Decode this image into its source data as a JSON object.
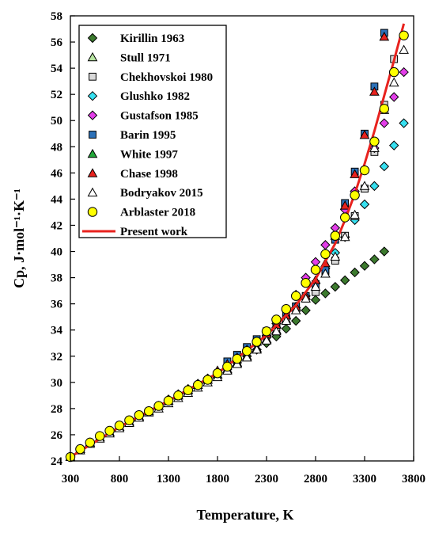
{
  "chart_data": {
    "type": "scatter",
    "title": "",
    "xlabel": "Temperature, K",
    "ylabel": "Cp, J·mol⁻¹·K⁻¹",
    "xlim": [
      300,
      3800
    ],
    "ylim": [
      24,
      58
    ],
    "xticks": [
      300,
      800,
      1300,
      1800,
      2300,
      2800,
      3300,
      3800
    ],
    "yticks": [
      24,
      26,
      28,
      30,
      32,
      34,
      36,
      38,
      40,
      42,
      44,
      46,
      48,
      50,
      52,
      54,
      56,
      58
    ],
    "legend_position": "upper-left",
    "grid": false,
    "series": [
      {
        "name": "Kirillin 1963",
        "marker": "diamond",
        "color": "#3c7a2e",
        "x": [
          300,
          400,
          500,
          600,
          700,
          800,
          900,
          1000,
          1100,
          1200,
          1300,
          1400,
          1500,
          1600,
          1700,
          1800,
          1900,
          2000,
          2100,
          2200,
          2300,
          2400,
          2500,
          2600,
          2700,
          2800,
          2900,
          3000,
          3100,
          3200,
          3300,
          3400,
          3500
        ],
        "y": [
          24.3,
          24.9,
          25.4,
          25.8,
          26.2,
          26.6,
          27.0,
          27.4,
          27.8,
          28.2,
          28.6,
          29.0,
          29.4,
          29.8,
          30.2,
          30.6,
          31.0,
          31.5,
          32.0,
          32.5,
          33.0,
          33.5,
          34.1,
          34.7,
          35.5,
          36.3,
          36.8,
          37.3,
          37.8,
          38.4,
          38.9,
          39.4,
          40.0
        ]
      },
      {
        "name": "Stull 1971",
        "marker": "triangle",
        "color": "#b6e4a0",
        "x": [
          300,
          400,
          500,
          600,
          700,
          800,
          900,
          1000,
          1100,
          1200,
          1300,
          1400,
          1500,
          1600,
          1700,
          1800,
          1900,
          2000,
          2100,
          2200,
          2300,
          2400,
          2500,
          2600
        ],
        "y": [
          24.3,
          24.9,
          25.4,
          25.8,
          26.2,
          26.6,
          27.0,
          27.4,
          27.8,
          28.2,
          28.6,
          29.0,
          29.4,
          29.8,
          30.2,
          30.6,
          31.0,
          31.5,
          32.0,
          32.6,
          33.3,
          34.0,
          34.8,
          35.7
        ]
      },
      {
        "name": "Chekhovskoi 1980",
        "marker": "square",
        "color": "#d9d9d9",
        "x": [
          2000,
          2100,
          2200,
          2300,
          2400,
          2500,
          2600,
          2700,
          2800,
          2900,
          3000,
          3100,
          3200,
          3300,
          3400,
          3500,
          3600
        ],
        "y": [
          32.1,
          32.6,
          33.1,
          33.6,
          34.2,
          34.9,
          35.8,
          36.4,
          36.9,
          38.5,
          39.3,
          41.2,
          42.7,
          44.8,
          47.6,
          51.2,
          54.7
        ]
      },
      {
        "name": "Glushko 1982",
        "marker": "diamond",
        "color": "#37e0f0",
        "x": [
          1300,
          1400,
          1500,
          1600,
          1700,
          1800,
          1900,
          2000,
          2100,
          2200,
          2300,
          2400,
          2500,
          2600,
          2700,
          2800,
          2900,
          3000,
          3100,
          3200,
          3300,
          3400,
          3500,
          3600,
          3700
        ],
        "y": [
          28.7,
          29.1,
          29.5,
          29.9,
          30.3,
          30.8,
          31.3,
          31.8,
          32.3,
          32.9,
          33.5,
          34.2,
          34.9,
          35.7,
          36.6,
          37.6,
          38.7,
          39.9,
          41.1,
          42.4,
          43.6,
          45.0,
          46.5,
          48.1,
          49.8
        ]
      },
      {
        "name": "Gustafson 1985",
        "marker": "diamond",
        "color": "#e23ee8",
        "x": [
          2300,
          2400,
          2500,
          2600,
          2700,
          2800,
          2900,
          3000,
          3100,
          3200,
          3300,
          3400,
          3500,
          3600,
          3700
        ],
        "y": [
          33.6,
          34.5,
          35.5,
          36.7,
          38.0,
          39.2,
          40.5,
          41.8,
          43.2,
          44.6,
          46.2,
          47.9,
          49.8,
          51.8,
          53.7
        ]
      },
      {
        "name": "Barin 1995",
        "marker": "square",
        "color": "#2d71b8",
        "x": [
          1900,
          2000,
          2100,
          2200,
          2300,
          2400,
          2500,
          2600,
          2700,
          2800,
          2900,
          3000,
          3100,
          3200,
          3300,
          3400,
          3500
        ],
        "y": [
          31.6,
          32.1,
          32.7,
          33.3,
          33.9,
          34.5,
          35.2,
          35.8,
          36.6,
          37.5,
          38.6,
          40.9,
          43.7,
          46.1,
          49.0,
          52.6,
          56.7
        ]
      },
      {
        "name": "White 1997",
        "marker": "triangle",
        "color": "#22a83a",
        "x": [
          300,
          400,
          500,
          600,
          700,
          800,
          900,
          1000,
          1100,
          1200,
          1300,
          1400,
          1500,
          1600,
          1700,
          1800,
          1900,
          2000,
          2100,
          2200,
          2300,
          2400
        ],
        "y": [
          24.3,
          24.9,
          25.4,
          25.8,
          26.2,
          26.6,
          27.0,
          27.4,
          27.8,
          28.2,
          28.6,
          29.0,
          29.4,
          29.8,
          30.2,
          30.6,
          31.0,
          31.5,
          32.0,
          32.6,
          33.3,
          34.0
        ]
      },
      {
        "name": "Chase 1998",
        "marker": "triangle",
        "color": "#e8221e",
        "x": [
          1800,
          1900,
          2000,
          2100,
          2200,
          2300,
          2400,
          2500,
          2600,
          2700,
          2800,
          2900,
          3000,
          3100,
          3200,
          3300,
          3400,
          3500
        ],
        "y": [
          30.9,
          31.4,
          31.9,
          32.5,
          33.1,
          33.7,
          34.4,
          35.1,
          35.8,
          36.6,
          37.8,
          39.1,
          41.2,
          43.5,
          45.9,
          48.9,
          52.2,
          56.4
        ]
      },
      {
        "name": "Bodryakov 2015",
        "marker": "triangle",
        "color": "#ffffff",
        "x": [
          300,
          400,
          500,
          600,
          700,
          800,
          900,
          1000,
          1100,
          1200,
          1300,
          1400,
          1500,
          1600,
          1700,
          1800,
          1900,
          2000,
          2100,
          2200,
          2300,
          2400,
          2500,
          2600,
          2700,
          2800,
          2900,
          3000,
          3100,
          3200,
          3300,
          3400,
          3500,
          3600,
          3700
        ],
        "y": [
          24.3,
          24.8,
          25.3,
          25.7,
          26.1,
          26.5,
          26.9,
          27.3,
          27.7,
          28.0,
          28.4,
          28.8,
          29.2,
          29.6,
          30.0,
          30.4,
          30.9,
          31.4,
          31.9,
          32.5,
          33.2,
          33.9,
          34.7,
          35.5,
          36.4,
          37.3,
          38.3,
          39.6,
          41.1,
          42.8,
          45.0,
          47.9,
          50.8,
          52.9,
          55.4
        ]
      },
      {
        "name": "Arblaster 2018",
        "marker": "circle",
        "color": "#ffff00",
        "x": [
          300,
          400,
          500,
          600,
          700,
          800,
          900,
          1000,
          1100,
          1200,
          1300,
          1400,
          1500,
          1600,
          1700,
          1800,
          1900,
          2000,
          2100,
          2200,
          2300,
          2400,
          2500,
          2600,
          2700,
          2800,
          2900,
          3000,
          3100,
          3200,
          3300,
          3400,
          3500,
          3600,
          3700
        ],
        "y": [
          24.3,
          24.9,
          25.4,
          25.9,
          26.3,
          26.7,
          27.1,
          27.5,
          27.8,
          28.2,
          28.6,
          29.0,
          29.4,
          29.8,
          30.2,
          30.7,
          31.2,
          31.8,
          32.4,
          33.1,
          33.9,
          34.8,
          35.6,
          36.6,
          37.6,
          38.6,
          39.8,
          41.2,
          42.6,
          44.3,
          46.2,
          48.4,
          50.9,
          53.7,
          56.5
        ]
      },
      {
        "name": "Present work",
        "marker": "line",
        "color": "#e8221e",
        "x": [
          300,
          800,
          1300,
          1800,
          2300,
          2600,
          2800,
          3000,
          3100,
          3200,
          3300,
          3400,
          3500,
          3600,
          3700
        ],
        "y": [
          24.3,
          26.6,
          28.6,
          30.7,
          33.6,
          35.9,
          37.9,
          40.6,
          42.4,
          44.4,
          46.7,
          49.2,
          51.9,
          54.6,
          57.4
        ]
      }
    ]
  }
}
